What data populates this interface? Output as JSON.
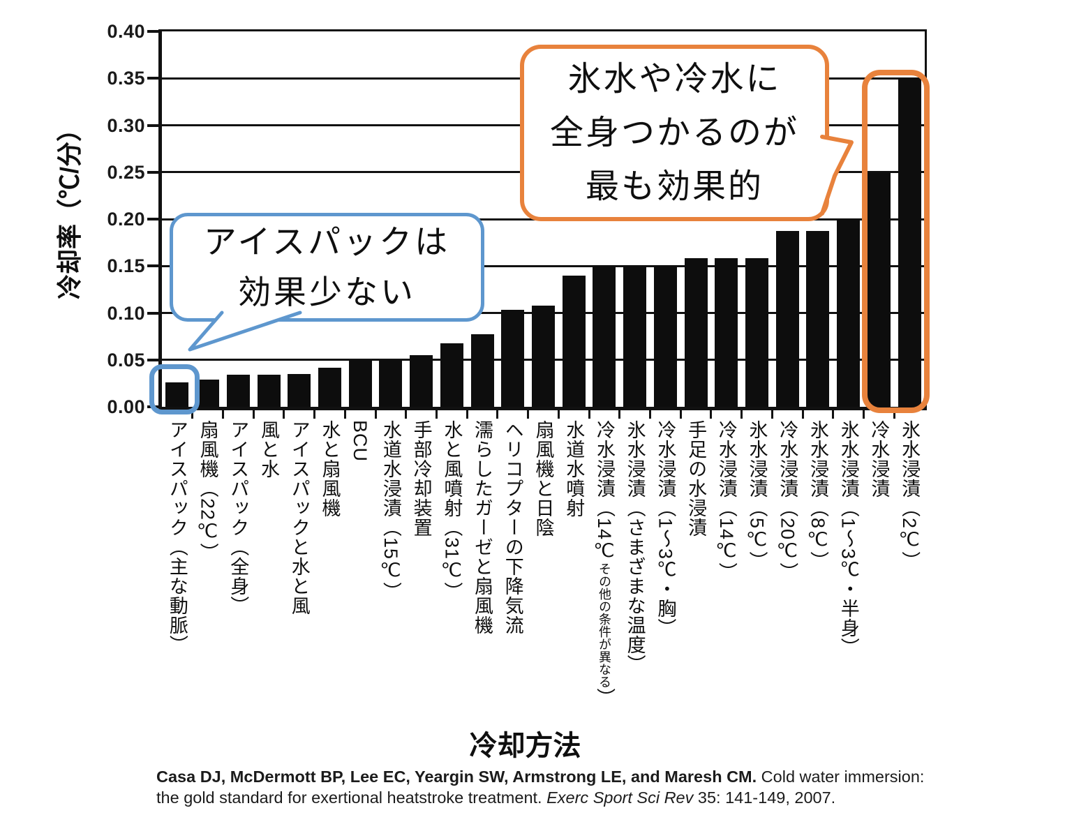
{
  "y_axis": {
    "label": "冷却率（℃/分）",
    "tick_labels": [
      "0.40",
      "0.35",
      "0.30",
      "0.25",
      "0.20",
      "0.15",
      "0.10",
      "0.05",
      "0.00"
    ]
  },
  "x_axis": {
    "title": "冷却方法"
  },
  "annotations": {
    "blue_bubble": {
      "lines": [
        "アイスパックは",
        "効果少ない"
      ],
      "border_color": "#5E97CE"
    },
    "orange_bubble": {
      "lines": [
        "氷水や冷水に",
        "全身つかるのが",
        "最も効果的"
      ],
      "border_color": "#E8823C"
    }
  },
  "citation": {
    "authors": "Casa DJ, McDermott BP, Lee EC, Yeargin SW, Armstrong LE, and Maresh CM.",
    "title": " Cold water immersion: the gold standard for exertional heatstroke treatment. ",
    "journal": "Exerc Sport Sci Rev",
    "issue": " 35: 141-149, 2007."
  },
  "x_labels": [
    {
      "main": "アイスパック（主な動脈）"
    },
    {
      "main": "扇風機（22℃）"
    },
    {
      "main": "アイスパック（全身）"
    },
    {
      "main": "風と水"
    },
    {
      "main": "アイスパックと水と風"
    },
    {
      "main": "水と扇風機"
    },
    {
      "main": "BCU"
    },
    {
      "main": "水道水浸漬（15℃）"
    },
    {
      "main": "手部冷却装置"
    },
    {
      "main": "水と風噴射（31℃）"
    },
    {
      "main": "濡らしたガーゼと扇風機"
    },
    {
      "main": "ヘリコプターの下降気流"
    },
    {
      "main": "扇風機と日陰"
    },
    {
      "main": "水道水噴射"
    },
    {
      "main": "冷水浸漬（14℃",
      "small": "その他の条件が異なる",
      "end": "）"
    },
    {
      "main": "氷水浸漬（さまざまな温度）"
    },
    {
      "main": "冷水浸漬（1～3℃・胸）"
    },
    {
      "main": "手足の水浸漬"
    },
    {
      "main": "冷水浸漬（14℃）"
    },
    {
      "main": "氷水浸漬（5℃）"
    },
    {
      "main": "冷水浸漬（20℃）"
    },
    {
      "main": "氷水浸漬（8℃）"
    },
    {
      "main": "氷水浸漬（1～3℃・半身）"
    },
    {
      "main": "冷水浸漬"
    },
    {
      "main": "氷水浸漬（2℃）"
    }
  ],
  "chart_data": {
    "type": "bar",
    "title": "",
    "ylabel": "冷却率（℃/分）",
    "xlabel": "冷却方法",
    "ylim": [
      0,
      0.4
    ],
    "ytick_step": 0.05,
    "grid": true,
    "legend": false,
    "bar_color": "#0d0d0d",
    "categories": [
      "アイスパック（主な動脈）",
      "扇風機（22℃）",
      "アイスパック（全身）",
      "風と水",
      "アイスパックと水と風",
      "水と扇風機",
      "BCU",
      "水道水浸漬（15℃）",
      "手部冷却装置",
      "水と風噴射（31℃）",
      "濡らしたガーゼと扇風機",
      "ヘリコプターの下降気流",
      "扇風機と日陰",
      "水道水噴射",
      "冷水浸漬（14℃ その他の条件が異なる）",
      "氷水浸漬（さまざまな温度）",
      "冷水浸漬（1～3℃・胸）",
      "手足の水浸漬",
      "冷水浸漬（14℃）",
      "氷水浸漬（5℃）",
      "冷水浸漬（20℃）",
      "氷水浸漬（8℃）",
      "氷水浸漬（1～3℃・半身）",
      "冷水浸漬",
      "氷水浸漬（2℃）"
    ],
    "values": [
      0.026,
      0.029,
      0.034,
      0.034,
      0.035,
      0.042,
      0.05,
      0.05,
      0.055,
      0.068,
      0.077,
      0.103,
      0.108,
      0.14,
      0.15,
      0.15,
      0.15,
      0.158,
      0.158,
      0.158,
      0.187,
      0.187,
      0.2,
      0.25,
      0.35
    ],
    "highlights": [
      {
        "indices": [
          0
        ],
        "color": "#5E97CE",
        "note": "アイスパックは効果少ない"
      },
      {
        "indices": [
          23,
          24
        ],
        "color": "#E8823C",
        "note": "氷水や冷水に全身つかるのが最も効果的"
      }
    ]
  }
}
